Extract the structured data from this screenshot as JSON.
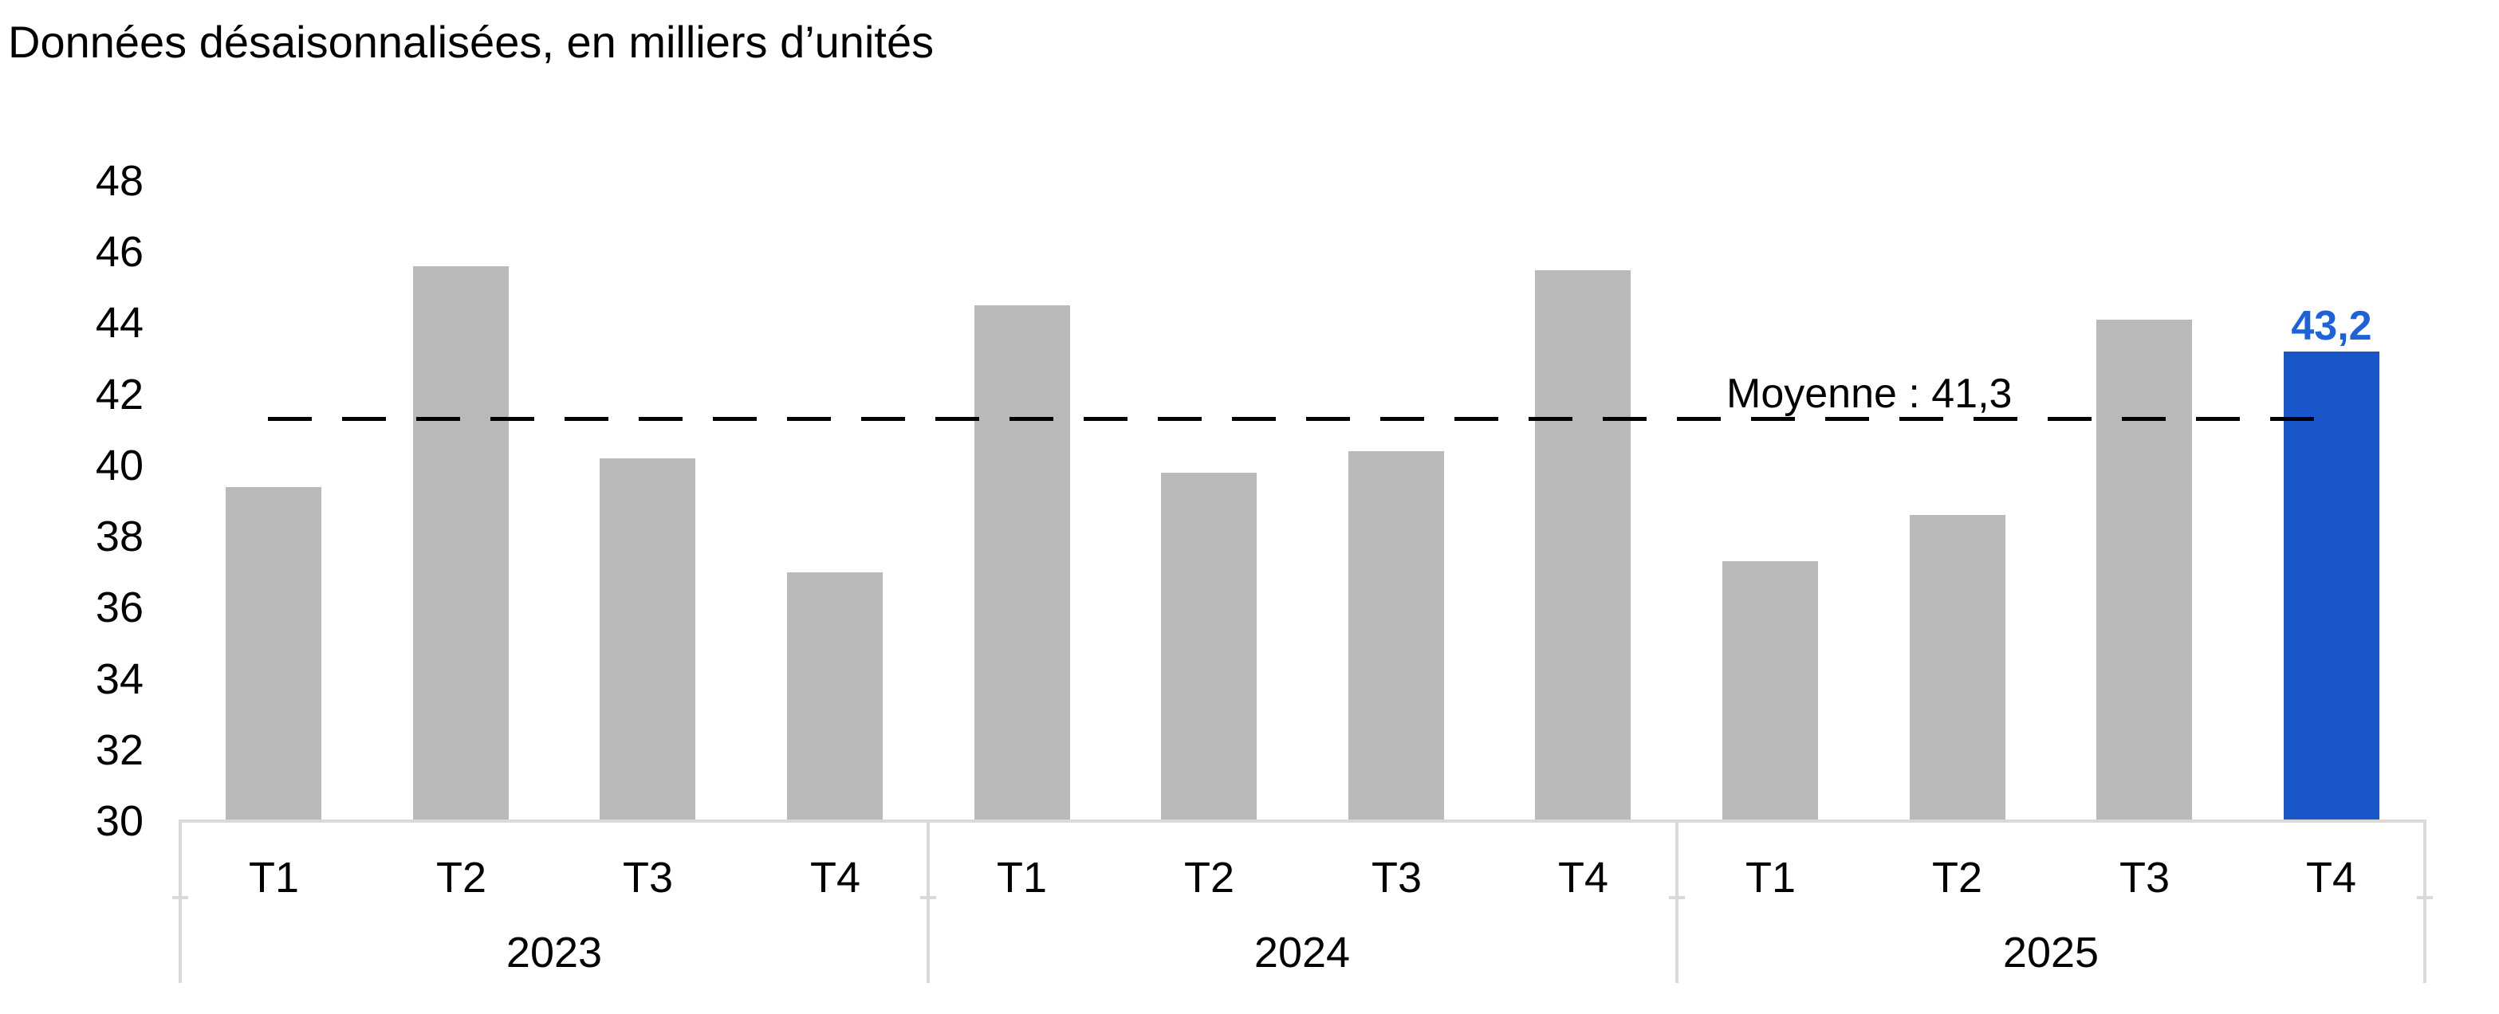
{
  "title": "Données désaisonnalisées, en milliers d’unités",
  "chart_data": {
    "type": "bar",
    "title": "Données désaisonnalisées, en milliers d’unités",
    "xlabel": "",
    "ylabel": "",
    "ylim": [
      30,
      48
    ],
    "ytick_step": 2,
    "yticks": [
      48,
      46,
      44,
      42,
      40,
      38,
      36,
      34,
      32,
      30
    ],
    "grid": "off",
    "legend": "none",
    "categories": [
      "T1",
      "T2",
      "T3",
      "T4",
      "T1",
      "T2",
      "T3",
      "T4",
      "T1",
      "T2",
      "T3",
      "T4"
    ],
    "groups": [
      {
        "year": "2023",
        "categories": [
          "T1",
          "T2",
          "T3",
          "T4"
        ],
        "values": [
          39.4,
          45.6,
          40.2,
          37.0
        ]
      },
      {
        "year": "2024",
        "categories": [
          "T1",
          "T2",
          "T3",
          "T4"
        ],
        "values": [
          44.5,
          39.8,
          40.4,
          45.5
        ]
      },
      {
        "year": "2025",
        "categories": [
          "T1",
          "T2",
          "T3",
          "T4"
        ],
        "values": [
          37.3,
          38.6,
          44.1,
          43.2
        ]
      }
    ],
    "average": {
      "value": 41.3,
      "label": "Moyenne : 41,3"
    },
    "highlight": {
      "year": "2025",
      "category": "T4",
      "value": 43.2,
      "label": "43,2"
    },
    "colors": {
      "bar": "#B9B9B9",
      "highlight_bar": "#1956C9",
      "highlight_label": "#1D62D8",
      "axis_box": "#D9D9D9",
      "average_line": "#000000",
      "text": "#000000"
    }
  }
}
